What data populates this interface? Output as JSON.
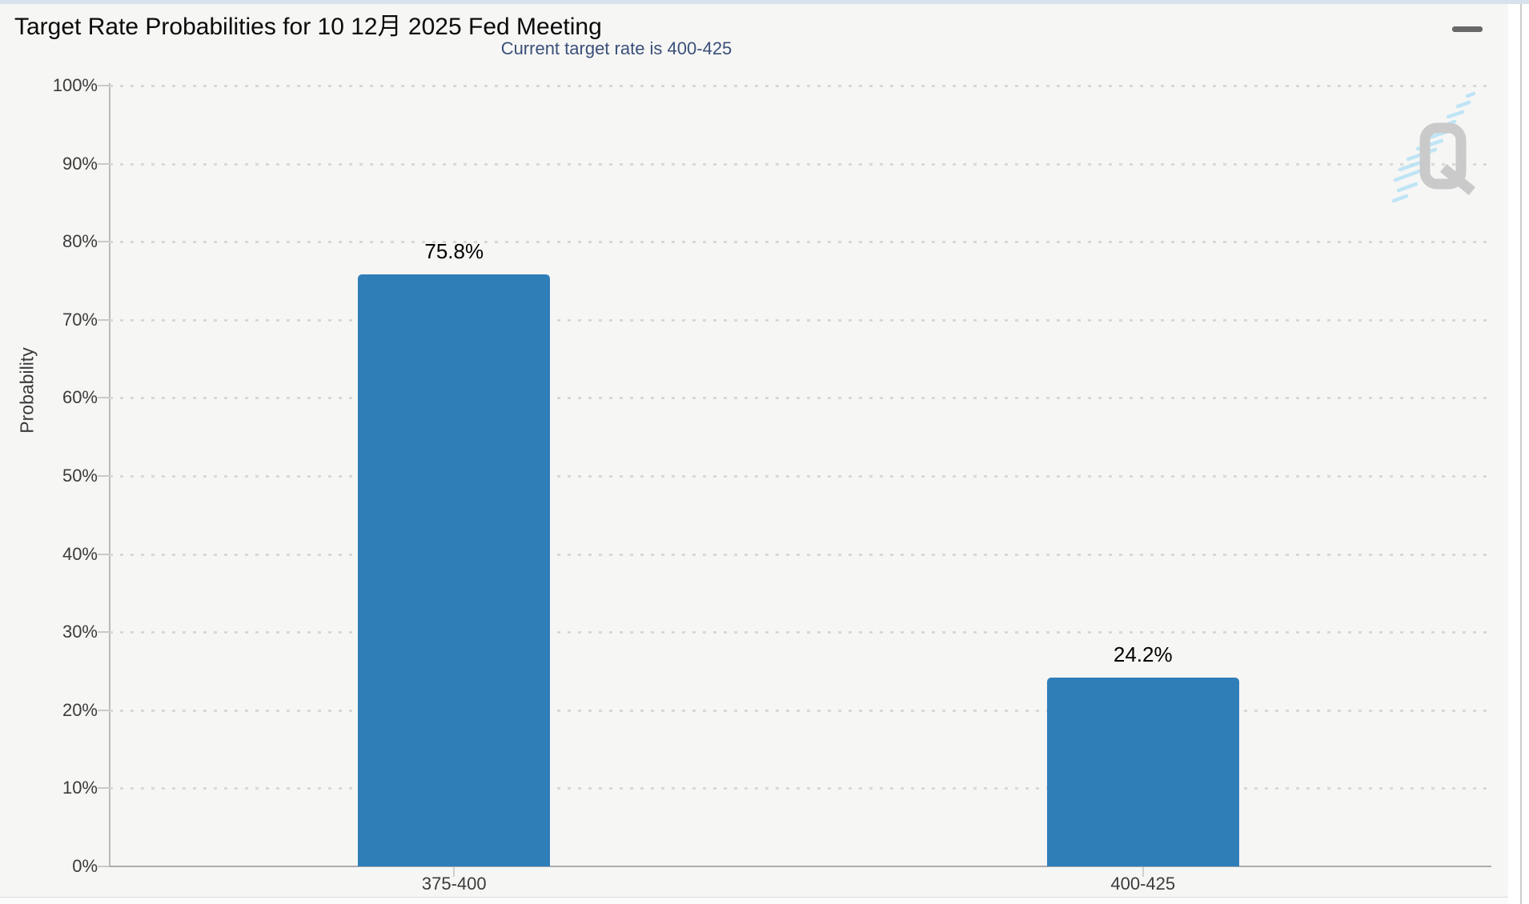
{
  "page": {
    "background_color": "#F6F6F5",
    "top_strip_color": "#D8E2EC",
    "icons": {
      "menu": "hamburger-menu-icon",
      "watermark": "quikstrike-q-watermark"
    }
  },
  "toolbar": {
    "menu_icon": "hamburger-menu"
  },
  "chart_data": {
    "type": "bar",
    "title": "Target Rate Probabilities for 10 12月 2025 Fed Meeting",
    "subtitle": "Current target rate is 400-425",
    "xlabel": "",
    "ylabel": "Probability",
    "categories": [
      "375-400",
      "400-425"
    ],
    "values": [
      75.8,
      24.2
    ],
    "value_labels": [
      "75.8%",
      "24.2%"
    ],
    "ylim": [
      0,
      100
    ],
    "yticks": [
      {
        "value": 0,
        "label": "0%"
      },
      {
        "value": 10,
        "label": "10%"
      },
      {
        "value": 20,
        "label": "20%"
      },
      {
        "value": 30,
        "label": "30%"
      },
      {
        "value": 40,
        "label": "40%"
      },
      {
        "value": 50,
        "label": "50%"
      },
      {
        "value": 60,
        "label": "60%"
      },
      {
        "value": 70,
        "label": "70%"
      },
      {
        "value": 80,
        "label": "80%"
      },
      {
        "value": 90,
        "label": "90%"
      },
      {
        "value": 100,
        "label": "100%"
      }
    ],
    "grid": "dotted-horizontal",
    "legend_position": "none",
    "bar_color": "#2F7EB8",
    "subtitle_color": "#3A5078",
    "watermark_letter": "Q"
  }
}
